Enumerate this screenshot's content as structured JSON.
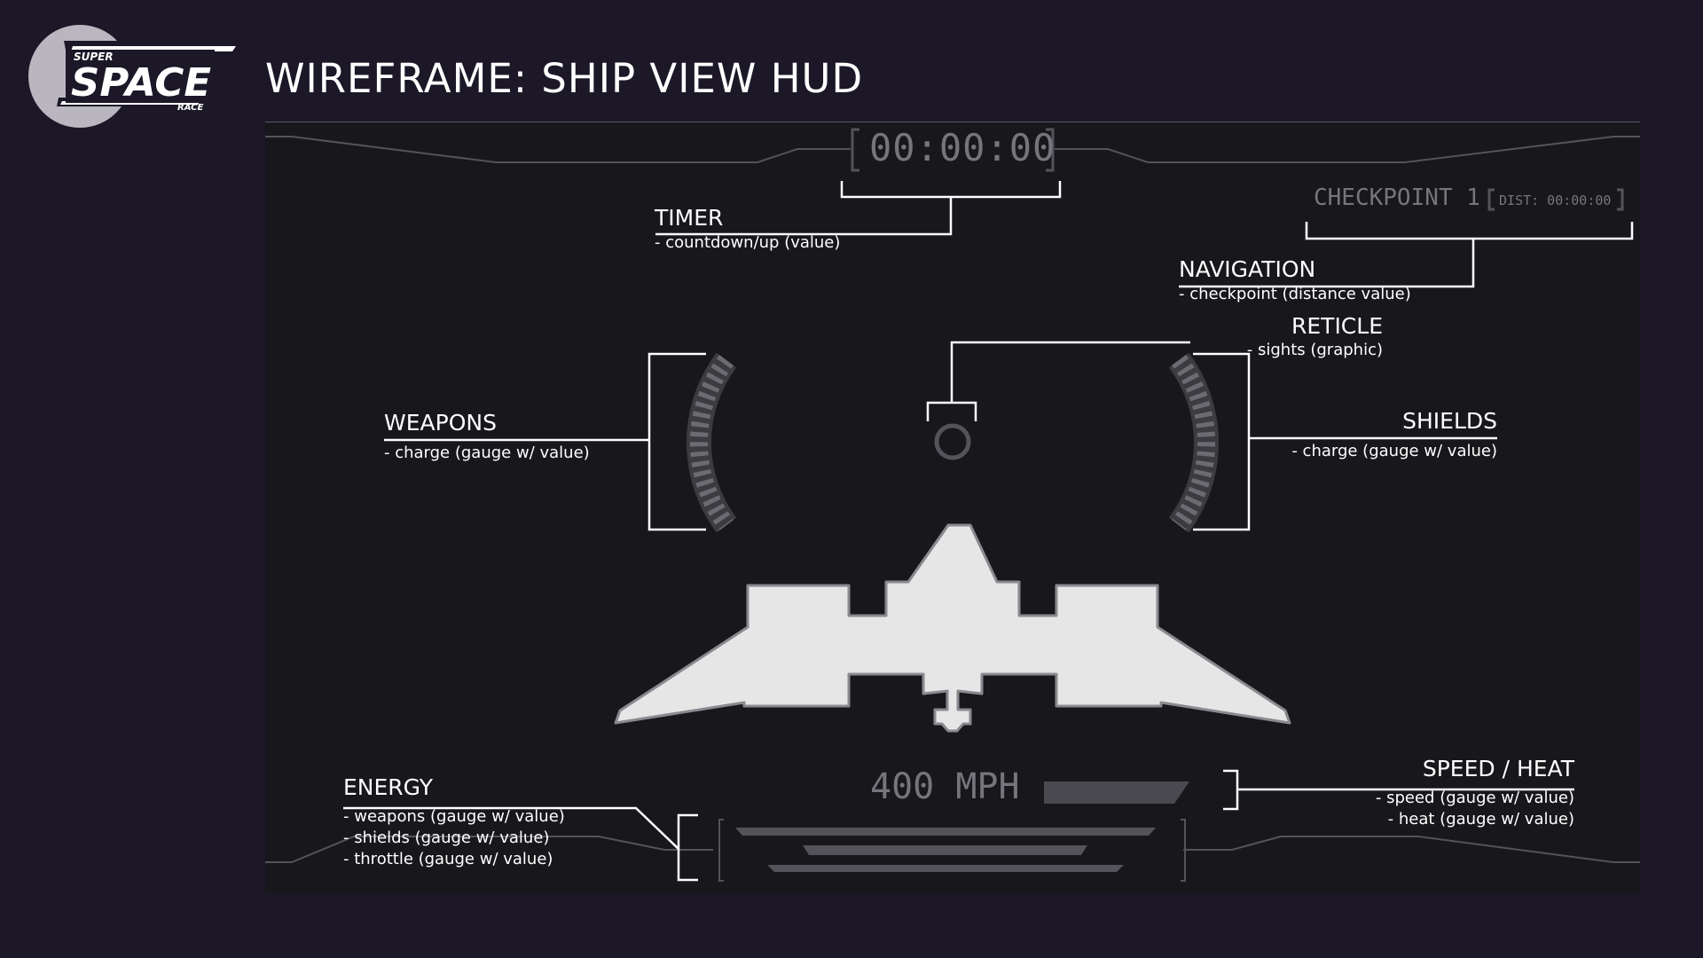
{
  "logo": {
    "super": "SUPER",
    "space": "SPACE",
    "race": "RACE"
  },
  "page_title": "WIREFRAME: SHIP VIEW HUD",
  "hud": {
    "timer_value": "00:00:00",
    "checkpoint_label": "CHECKPOINT 1",
    "checkpoint_dist": "DIST: 00:00:00",
    "speed_value": "400 MPH"
  },
  "annotations": {
    "timer": {
      "title": "TIMER",
      "lines": [
        "- countdown/up (value)"
      ]
    },
    "navigation": {
      "title": "NAVIGATION",
      "lines": [
        "- checkpoint (distance value)"
      ]
    },
    "reticle": {
      "title": "RETICLE",
      "lines": [
        "- sights (graphic)"
      ]
    },
    "weapons": {
      "title": "WEAPONS",
      "lines": [
        "- charge (gauge w/ value)"
      ]
    },
    "shields": {
      "title": "SHIELDS",
      "lines": [
        "- charge (gauge w/ value)"
      ]
    },
    "energy": {
      "title": "ENERGY",
      "lines": [
        "- weapons (gauge w/ value)",
        "- shields (gauge w/ value)",
        "- throttle (gauge w/ value)"
      ]
    },
    "speed_heat": {
      "title": "SPEED / HEAT",
      "lines": [
        "- speed (gauge w/ value)",
        "- heat (gauge w/ value)"
      ]
    }
  },
  "colors": {
    "page_bg": "#1c1828",
    "hud_bg": "#18171b",
    "hud_lines": "#55535a",
    "hud_text": "#77757c",
    "annotation": "#ffffff",
    "ship": "#e6e6e6"
  }
}
